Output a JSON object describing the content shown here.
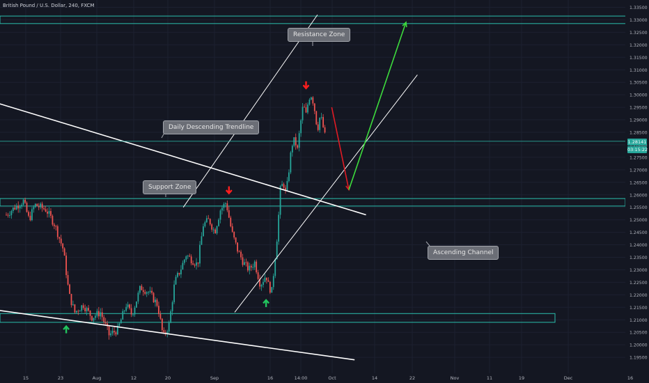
{
  "header": {
    "title": "British Pound / U.S. Dollar, 240, FXCM"
  },
  "price_tag": {
    "value": "1.28141",
    "countdown": "03:15:22"
  },
  "annotations": {
    "resistance": "Resistance Zone",
    "trendline": "Daily Descending Trendline",
    "support": "Support Zone",
    "channel": "Ascending Channel"
  },
  "colors": {
    "background": "#141722",
    "grid": "#1c2030",
    "up": "#26a69a",
    "down": "#ef5350",
    "zone": "#2bbfae",
    "arrow_up": "#22c55e",
    "arrow_down": "#ff1e1e",
    "axis_text": "#b2b5be"
  },
  "chart_data": {
    "type": "candlestick",
    "symbol": "British Pound / U.S. Dollar",
    "interval": "240",
    "source": "FXCM",
    "y_axis_ticks": [
      "1.33500",
      "1.33000",
      "1.32500",
      "1.32000",
      "1.31500",
      "1.31000",
      "1.30500",
      "1.30000",
      "1.29500",
      "1.29000",
      "1.28500",
      "1.28000",
      "1.27500",
      "1.27000",
      "1.26500",
      "1.26000",
      "1.25500",
      "1.25000",
      "1.24500",
      "1.24000",
      "1.23500",
      "1.23000",
      "1.22500",
      "1.22000",
      "1.21500",
      "1.21000",
      "1.20500",
      "1.20000",
      "1.19500"
    ],
    "x_axis_ticks": [
      "15",
      "23",
      "Aug",
      "12",
      "20",
      "Sep",
      "16",
      "14:00",
      "Oct",
      "14",
      "22",
      "Nov",
      "11",
      "19",
      "Dec",
      "16"
    ],
    "ylim": [
      1.1935,
      1.3365
    ],
    "last_price": 1.28141,
    "price_path": [
      {
        "day": 0,
        "price": 1.252
      },
      {
        "day": 3,
        "price": 1.255
      },
      {
        "day": 6,
        "price": 1.2575
      },
      {
        "day": 8,
        "price": 1.25
      },
      {
        "day": 10,
        "price": 1.256
      },
      {
        "day": 14,
        "price": 1.254
      },
      {
        "day": 17,
        "price": 1.248
      },
      {
        "day": 20,
        "price": 1.238
      },
      {
        "day": 22,
        "price": 1.22
      },
      {
        "day": 24,
        "price": 1.213
      },
      {
        "day": 27,
        "price": 1.216
      },
      {
        "day": 30,
        "price": 1.211
      },
      {
        "day": 33,
        "price": 1.213
      },
      {
        "day": 36,
        "price": 1.204
      },
      {
        "day": 39,
        "price": 1.206
      },
      {
        "day": 42,
        "price": 1.216
      },
      {
        "day": 44,
        "price": 1.212
      },
      {
        "day": 47,
        "price": 1.223
      },
      {
        "day": 50,
        "price": 1.221
      },
      {
        "day": 53,
        "price": 1.216
      },
      {
        "day": 55,
        "price": 1.203
      },
      {
        "day": 57,
        "price": 1.208
      },
      {
        "day": 59,
        "price": 1.225
      },
      {
        "day": 61,
        "price": 1.23
      },
      {
        "day": 63,
        "price": 1.236
      },
      {
        "day": 65,
        "price": 1.234
      },
      {
        "day": 67,
        "price": 1.232
      },
      {
        "day": 69,
        "price": 1.248
      },
      {
        "day": 71,
        "price": 1.25
      },
      {
        "day": 73,
        "price": 1.245
      },
      {
        "day": 75,
        "price": 1.254
      },
      {
        "day": 77,
        "price": 1.257
      },
      {
        "day": 79,
        "price": 1.245
      },
      {
        "day": 81,
        "price": 1.238
      },
      {
        "day": 83,
        "price": 1.233
      },
      {
        "day": 85,
        "price": 1.23
      },
      {
        "day": 87,
        "price": 1.233
      },
      {
        "day": 89,
        "price": 1.224
      },
      {
        "day": 91,
        "price": 1.228
      },
      {
        "day": 92,
        "price": 1.223
      },
      {
        "day": 93,
        "price": 1.2215
      },
      {
        "day": 94,
        "price": 1.233
      },
      {
        "day": 95,
        "price": 1.245
      },
      {
        "day": 96,
        "price": 1.262
      },
      {
        "day": 97,
        "price": 1.265
      },
      {
        "day": 98,
        "price": 1.26
      },
      {
        "day": 99,
        "price": 1.27
      },
      {
        "day": 100,
        "price": 1.28
      },
      {
        "day": 101,
        "price": 1.282
      },
      {
        "day": 102,
        "price": 1.278
      },
      {
        "day": 103,
        "price": 1.288
      },
      {
        "day": 104,
        "price": 1.296
      },
      {
        "day": 105,
        "price": 1.292
      },
      {
        "day": 106,
        "price": 1.299
      },
      {
        "day": 107,
        "price": 1.3
      },
      {
        "day": 108,
        "price": 1.294
      },
      {
        "day": 109,
        "price": 1.286
      },
      {
        "day": 110,
        "price": 1.292
      },
      {
        "day": 111,
        "price": 1.287
      },
      {
        "day": 112,
        "price": 1.2814
      }
    ],
    "zones": [
      {
        "name": "Resistance Zone",
        "from": 1.3285,
        "to": 1.3315
      },
      {
        "name": "Support Zone",
        "from": 1.2555,
        "to": 1.2585
      },
      {
        "from": 1.209,
        "to": 1.2125
      }
    ],
    "trendlines": [
      {
        "name": "Daily Descending Trendline",
        "from": {
          "day": -4,
          "price": 1.297
        },
        "to": {
          "day": 126,
          "price": 1.252
        }
      },
      {
        "from": {
          "day": -4,
          "price": 1.214
        },
        "to": {
          "day": 122,
          "price": 1.194
        }
      },
      {
        "name": "Ascending Channel",
        "from": {
          "day": 80,
          "price": 1.213
        },
        "to": {
          "day": 144,
          "price": 1.308
        }
      },
      {
        "from": {
          "day": 62,
          "price": 1.255
        },
        "to": {
          "day": 109,
          "price": 1.332
        }
      }
    ],
    "projection": [
      {
        "day": 114,
        "price": 1.295,
        "color": "red"
      },
      {
        "day": 120,
        "price": 1.262,
        "color": "red"
      },
      {
        "day": 140,
        "price": 1.329,
        "color": "green"
      }
    ],
    "signals": [
      {
        "direction": "down",
        "day": 78,
        "price": 1.262
      },
      {
        "direction": "down",
        "day": 105,
        "price": 1.304
      },
      {
        "direction": "up",
        "day": 21,
        "price": 1.206
      },
      {
        "direction": "up",
        "day": 91,
        "price": 1.2165
      }
    ]
  }
}
